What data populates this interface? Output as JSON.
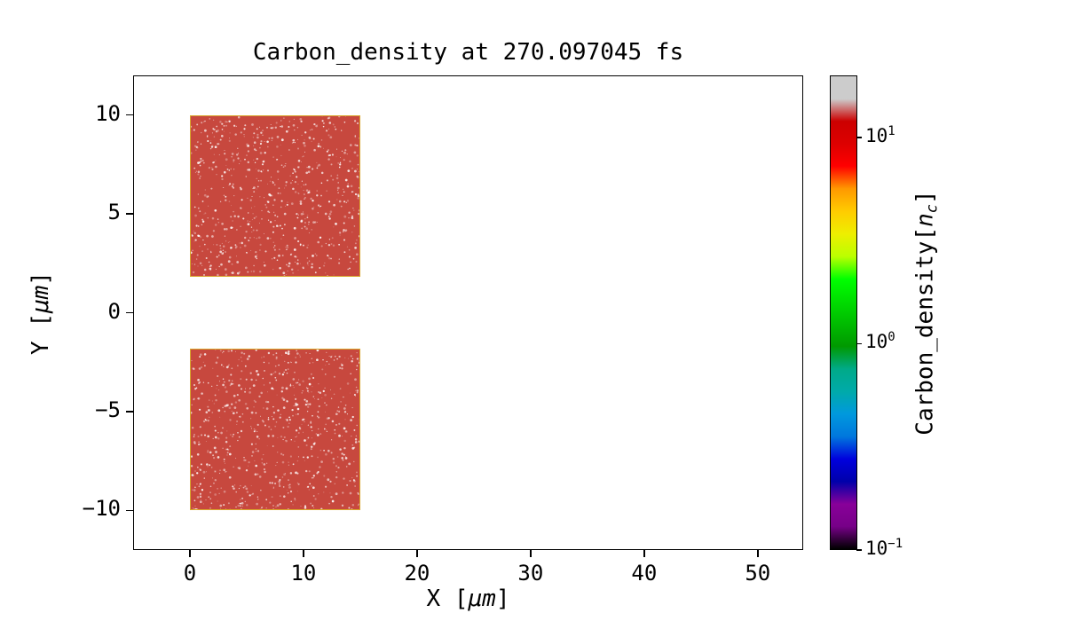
{
  "chart_data": {
    "type": "heatmap",
    "title": "Carbon_density at 270.097045 fs",
    "time_fs": 270.097045,
    "xlabel": {
      "pre": "X [",
      "unit": "μm",
      "post": "]"
    },
    "ylabel": {
      "pre": "Y [",
      "unit": "μm",
      "post": "]"
    },
    "xlim": [
      -5,
      54
    ],
    "ylim": [
      -12,
      12
    ],
    "x_ticks": [
      0,
      10,
      20,
      30,
      40,
      50
    ],
    "y_ticks": [
      -10,
      -5,
      0,
      5,
      10
    ],
    "grid": false,
    "blocks": [
      {
        "x0": 0,
        "x1": 15,
        "y0": 1.8,
        "y1": 10,
        "approx_density_nc": 12,
        "fill": "#c7483e",
        "edge": "#d8a62c"
      },
      {
        "x0": 0,
        "x1": 15,
        "y0": -10,
        "y1": -1.8,
        "approx_density_nc": 12,
        "fill": "#c7483e",
        "edge": "#d8a62c"
      }
    ],
    "noise": {
      "dot_color": "#ffffff",
      "seed": 42
    },
    "colorbar": {
      "label": {
        "pre": "Carbon_density[",
        "var": "n",
        "sub": "c",
        "post": "]"
      },
      "scale": "log",
      "vmin": 0.1,
      "vmax": 20,
      "colormap": "nipy_spectral",
      "ticks": [
        {
          "base": "10",
          "exp": "1",
          "value": 10
        },
        {
          "base": "10",
          "exp": "0",
          "value": 1
        },
        {
          "base": "10",
          "exp": "−1",
          "value": 0.1
        }
      ],
      "stops": [
        {
          "pos": 0.0,
          "color": "#000000"
        },
        {
          "pos": 0.048,
          "color": "#770088"
        },
        {
          "pos": 0.095,
          "color": "#880099"
        },
        {
          "pos": 0.143,
          "color": "#0000aa"
        },
        {
          "pos": 0.19,
          "color": "#0000dd"
        },
        {
          "pos": 0.238,
          "color": "#0077dd"
        },
        {
          "pos": 0.286,
          "color": "#0099dd"
        },
        {
          "pos": 0.333,
          "color": "#00aaaa"
        },
        {
          "pos": 0.381,
          "color": "#00aa88"
        },
        {
          "pos": 0.429,
          "color": "#009900"
        },
        {
          "pos": 0.476,
          "color": "#00bb00"
        },
        {
          "pos": 0.524,
          "color": "#00dd00"
        },
        {
          "pos": 0.571,
          "color": "#00ff00"
        },
        {
          "pos": 0.619,
          "color": "#bbff00"
        },
        {
          "pos": 0.667,
          "color": "#eeee00"
        },
        {
          "pos": 0.714,
          "color": "#ffcc00"
        },
        {
          "pos": 0.762,
          "color": "#ff9900"
        },
        {
          "pos": 0.81,
          "color": "#ff0000"
        },
        {
          "pos": 0.857,
          "color": "#dd0000"
        },
        {
          "pos": 0.905,
          "color": "#cc0000"
        },
        {
          "pos": 0.952,
          "color": "#cccccc"
        }
      ]
    },
    "axis_color": "#000000",
    "background_color": "#ffffff"
  }
}
